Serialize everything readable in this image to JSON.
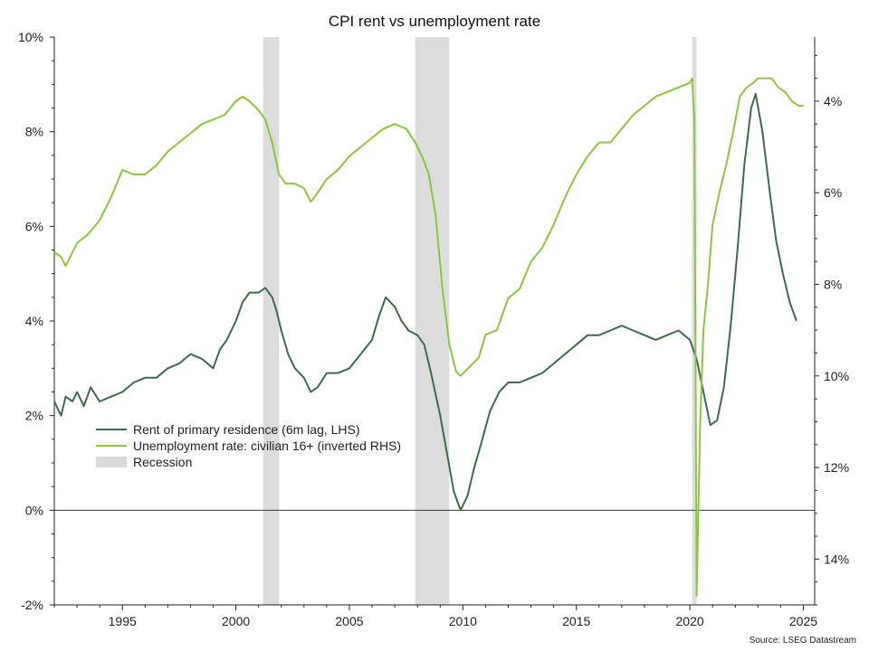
{
  "chart_data": {
    "type": "line",
    "title": "CPI rent vs unemployment rate",
    "source": "Source: LSEG Datastream",
    "x_ticks": [
      "1995",
      "2000",
      "2005",
      "2010",
      "2015",
      "2020",
      "2025"
    ],
    "xlim": [
      1992.0,
      2025.5
    ],
    "left_axis": {
      "ticks": [
        "10%",
        "8%",
        "6%",
        "4%",
        "2%",
        "0%",
        "-2%"
      ],
      "ylim": [
        -2,
        10
      ]
    },
    "right_axis": {
      "ticks": [
        "4%",
        "6%",
        "8%",
        "10%",
        "12%",
        "14%"
      ],
      "ylim": [
        15,
        2.6
      ],
      "inverted": true
    },
    "zero_line": true,
    "legend_position": "center-left",
    "recessions": [
      {
        "start": 2001.2,
        "end": 2001.9
      },
      {
        "start": 2007.9,
        "end": 2009.4
      },
      {
        "start": 2020.1,
        "end": 2020.3
      }
    ],
    "series": [
      {
        "name": "Rent of primary residence (6m lag, LHS)",
        "axis": "left",
        "color": "#3d6b4f",
        "x": [
          1992.0,
          1992.3,
          1992.5,
          1992.8,
          1993.0,
          1993.3,
          1993.6,
          1994.0,
          1994.5,
          1995.0,
          1995.5,
          1996.0,
          1996.5,
          1997.0,
          1997.5,
          1998.0,
          1998.5,
          1999.0,
          1999.3,
          1999.6,
          2000.0,
          2000.3,
          2000.6,
          2001.0,
          2001.3,
          2001.6,
          2001.8,
          2002.0,
          2002.3,
          2002.6,
          2003.0,
          2003.3,
          2003.6,
          2004.0,
          2004.5,
          2005.0,
          2005.5,
          2006.0,
          2006.3,
          2006.6,
          2007.0,
          2007.3,
          2007.6,
          2008.0,
          2008.3,
          2008.6,
          2009.0,
          2009.3,
          2009.6,
          2009.9,
          2010.2,
          2010.5,
          2010.8,
          2011.2,
          2011.6,
          2012.0,
          2012.5,
          2013.0,
          2013.5,
          2014.0,
          2014.5,
          2015.0,
          2015.5,
          2016.0,
          2016.5,
          2017.0,
          2017.5,
          2018.0,
          2018.5,
          2019.0,
          2019.5,
          2020.0,
          2020.3,
          2020.6,
          2020.9,
          2021.2,
          2021.5,
          2021.8,
          2022.1,
          2022.4,
          2022.7,
          2022.9,
          2023.2,
          2023.5,
          2023.8,
          2024.1,
          2024.4,
          2024.7
        ],
        "values": [
          2.3,
          2.0,
          2.4,
          2.3,
          2.5,
          2.2,
          2.6,
          2.3,
          2.4,
          2.5,
          2.7,
          2.8,
          2.8,
          3.0,
          3.1,
          3.3,
          3.2,
          3.0,
          3.4,
          3.6,
          4.0,
          4.4,
          4.6,
          4.6,
          4.7,
          4.5,
          4.2,
          3.8,
          3.3,
          3.0,
          2.8,
          2.5,
          2.6,
          2.9,
          2.9,
          3.0,
          3.3,
          3.6,
          4.1,
          4.5,
          4.3,
          4.0,
          3.8,
          3.7,
          3.5,
          2.9,
          2.0,
          1.2,
          0.4,
          0.0,
          0.3,
          0.9,
          1.4,
          2.1,
          2.5,
          2.7,
          2.7,
          2.8,
          2.9,
          3.1,
          3.3,
          3.5,
          3.7,
          3.7,
          3.8,
          3.9,
          3.8,
          3.7,
          3.6,
          3.7,
          3.8,
          3.6,
          3.2,
          2.5,
          1.8,
          1.9,
          2.6,
          3.9,
          5.5,
          7.3,
          8.5,
          8.8,
          8.0,
          6.8,
          5.7,
          5.0,
          4.4,
          4.0
        ]
      },
      {
        "name": "Unemployment rate: civilian 16+ (inverted RHS)",
        "axis": "right",
        "color": "#8cc63f",
        "x": [
          1992.0,
          1992.3,
          1992.5,
          1992.8,
          1993.0,
          1993.5,
          1994.0,
          1994.5,
          1995.0,
          1995.5,
          1996.0,
          1996.5,
          1997.0,
          1997.5,
          1998.0,
          1998.5,
          1999.0,
          1999.5,
          2000.0,
          2000.3,
          2000.6,
          2001.0,
          2001.3,
          2001.6,
          2001.9,
          2002.2,
          2002.6,
          2003.0,
          2003.3,
          2003.6,
          2004.0,
          2004.5,
          2005.0,
          2005.5,
          2006.0,
          2006.5,
          2007.0,
          2007.5,
          2007.9,
          2008.2,
          2008.5,
          2008.8,
          2009.1,
          2009.4,
          2009.7,
          2009.9,
          2010.3,
          2010.7,
          2011.0,
          2011.5,
          2012.0,
          2012.5,
          2013.0,
          2013.5,
          2014.0,
          2014.5,
          2015.0,
          2015.5,
          2016.0,
          2016.5,
          2017.0,
          2017.5,
          2018.0,
          2018.5,
          2019.0,
          2019.5,
          2020.0,
          2020.1,
          2020.2,
          2020.3,
          2020.45,
          2020.6,
          2020.8,
          2021.0,
          2021.3,
          2021.6,
          2021.9,
          2022.2,
          2022.5,
          2022.8,
          2023.0,
          2023.3,
          2023.6,
          2023.9,
          2024.2,
          2024.5,
          2024.8,
          2025.0
        ],
        "values": [
          7.3,
          7.4,
          7.6,
          7.3,
          7.1,
          6.9,
          6.6,
          6.1,
          5.5,
          5.6,
          5.6,
          5.4,
          5.1,
          4.9,
          4.7,
          4.5,
          4.4,
          4.3,
          4.0,
          3.9,
          4.0,
          4.2,
          4.4,
          4.9,
          5.6,
          5.8,
          5.8,
          5.9,
          6.2,
          6.0,
          5.7,
          5.5,
          5.2,
          5.0,
          4.8,
          4.6,
          4.5,
          4.6,
          4.9,
          5.2,
          5.6,
          6.5,
          8.1,
          9.3,
          9.9,
          10.0,
          9.8,
          9.6,
          9.1,
          9.0,
          8.3,
          8.1,
          7.5,
          7.2,
          6.7,
          6.1,
          5.6,
          5.2,
          4.9,
          4.9,
          4.6,
          4.3,
          4.1,
          3.9,
          3.8,
          3.7,
          3.6,
          3.5,
          4.4,
          14.8,
          11.1,
          9.0,
          8.0,
          6.7,
          6.0,
          5.4,
          4.7,
          3.9,
          3.7,
          3.6,
          3.5,
          3.5,
          3.5,
          3.7,
          3.8,
          4.0,
          4.1,
          4.1
        ]
      }
    ]
  }
}
